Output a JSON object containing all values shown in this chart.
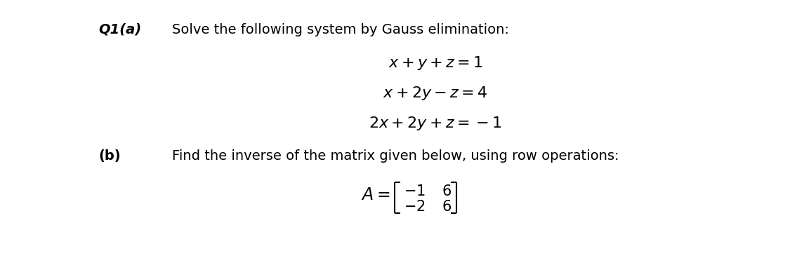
{
  "background_color": "#ffffff",
  "figsize": [
    11.25,
    3.68
  ],
  "dpi": 100,
  "q1a_label": "Q1(a)",
  "q1a_text": "Solve the following system by Gauss elimination:",
  "eq1": "$x +y +z =1$",
  "eq2": "$x +2y -z =4$",
  "eq3": "$2x +2y +z =-1$",
  "qb_label": "(b)",
  "qb_text": "Find the inverse of the matrix given below, using row operations:",
  "matrix_label": "$A =$",
  "matrix_row1": [
    "$-1$",
    "$6$"
  ],
  "matrix_row2": [
    "$-2$",
    "$6$"
  ],
  "fontsize_q1a": 14,
  "fontsize_text": 14,
  "fontsize_eq": 16,
  "fontsize_matrix": 15,
  "fontsize_b": 14
}
